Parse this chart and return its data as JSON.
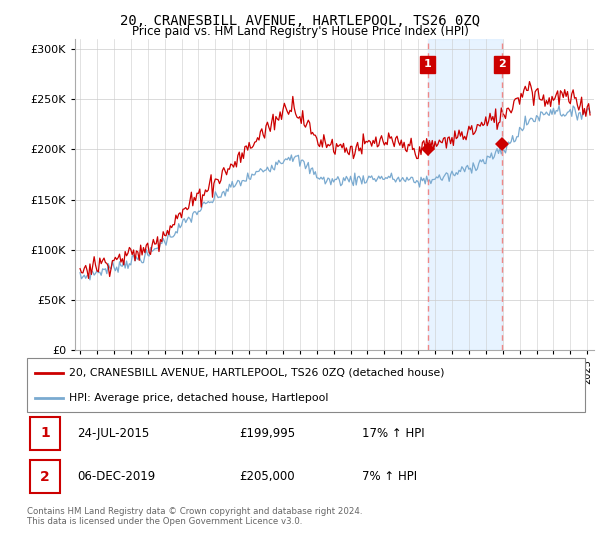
{
  "title": "20, CRANESBILL AVENUE, HARTLEPOOL, TS26 0ZQ",
  "subtitle": "Price paid vs. HM Land Registry's House Price Index (HPI)",
  "legend_line1": "20, CRANESBILL AVENUE, HARTLEPOOL, TS26 0ZQ (detached house)",
  "legend_line2": "HPI: Average price, detached house, Hartlepool",
  "annotation1_date": "24-JUL-2015",
  "annotation1_price": "£199,995",
  "annotation1_hpi": "17% ↑ HPI",
  "annotation2_date": "06-DEC-2019",
  "annotation2_price": "£205,000",
  "annotation2_hpi": "7% ↑ HPI",
  "footnote": "Contains HM Land Registry data © Crown copyright and database right 2024.\nThis data is licensed under the Open Government Licence v3.0.",
  "sale1_date_num": 2015.56,
  "sale1_price": 199995,
  "sale2_date_num": 2019.93,
  "sale2_price": 205000,
  "line_color_property": "#cc0000",
  "line_color_hpi": "#7aaad0",
  "shaded_region_color": "#ddeeff",
  "vline_color": "#ee8888",
  "annotation_box_color": "#cc0000",
  "ylim_min": 0,
  "ylim_max": 310000,
  "background_color": "#ffffff"
}
